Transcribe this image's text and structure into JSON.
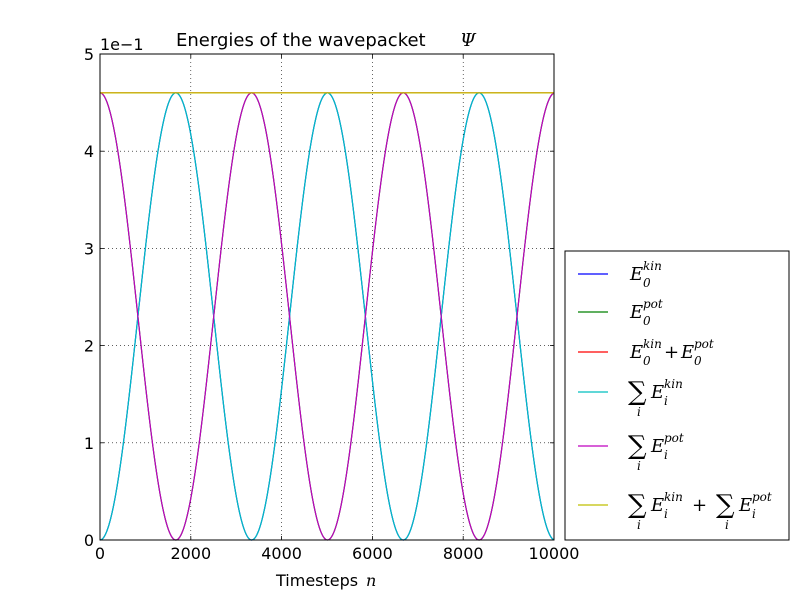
{
  "chart_data": {
    "type": "line",
    "title": "Energies of the wavepacket",
    "title_symbol": "Ψ",
    "xlabel": "Timesteps",
    "xlabel_symbol": "n",
    "ylabel": "",
    "y_offset_text": "1e−1",
    "xlim": [
      0,
      10000
    ],
    "ylim": [
      0,
      5
    ],
    "x_ticks": [
      0,
      2000,
      4000,
      6000,
      8000,
      10000
    ],
    "y_ticks": [
      0,
      1,
      2,
      3,
      4,
      5
    ],
    "grid": true,
    "grid_style": "dotted",
    "legend_position": "outside-right-bottom",
    "series": [
      {
        "name": "E_0^kin",
        "color": "#0000ff",
        "formula": "kinetic",
        "amplitude": 4.6,
        "period": 3340
      },
      {
        "name": "E_0^pot",
        "color": "#008000",
        "formula": "potential",
        "amplitude": 4.6,
        "period": 3340
      },
      {
        "name": "E_0^kin + E_0^pot",
        "color": "#ff0000",
        "formula": "total",
        "value": 4.6
      },
      {
        "name": "Σ_i E_i^kin",
        "color": "#00bfbf",
        "formula": "kinetic",
        "amplitude": 4.6,
        "period": 3340
      },
      {
        "name": "Σ_i E_i^pot",
        "color": "#bf00bf",
        "formula": "potential",
        "amplitude": 4.6,
        "period": 3340
      },
      {
        "name": "Σ_i E_i^kin + Σ_i E_i^pot",
        "color": "#bfbf00",
        "formula": "total",
        "value": 4.6
      }
    ]
  }
}
